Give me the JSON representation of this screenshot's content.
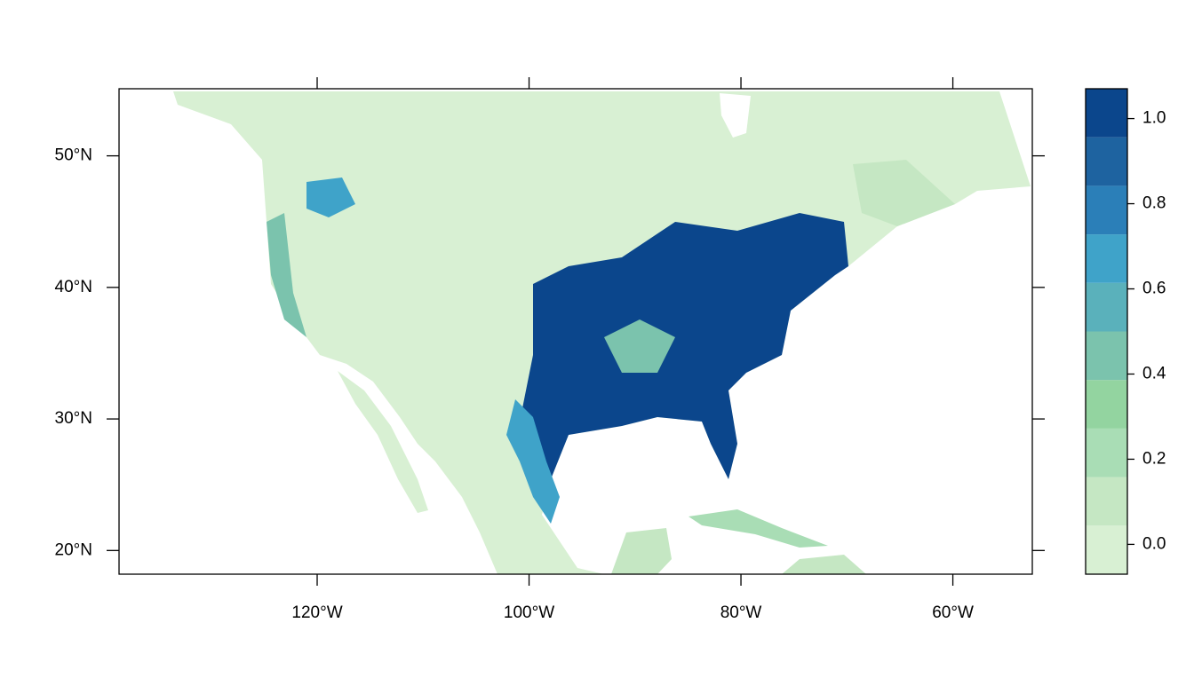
{
  "chart_data": {
    "type": "raster-map",
    "xlim": [
      -138.7,
      -52.5
    ],
    "ylim": [
      18.2,
      55.1
    ],
    "xticks": [
      {
        "value": -120,
        "label": "120°W"
      },
      {
        "value": -100,
        "label": "100°W"
      },
      {
        "value": -80,
        "label": "80°W"
      },
      {
        "value": -60,
        "label": "60°W"
      }
    ],
    "yticks": [
      {
        "value": 20,
        "label": "20°N"
      },
      {
        "value": 30,
        "label": "30°N"
      },
      {
        "value": 40,
        "label": "40°N"
      },
      {
        "value": 50,
        "label": "50°N"
      }
    ],
    "colorbar": {
      "breaks": [
        -0.07,
        0.044,
        0.158,
        0.272,
        0.386,
        0.5,
        0.614,
        0.728,
        0.842,
        0.956,
        1.07
      ],
      "colors": [
        "#d8f0d3",
        "#c5e7c3",
        "#a9ddb5",
        "#93d4a0",
        "#7bc3ad",
        "#5ab1bb",
        "#3fa3c9",
        "#2b7fb8",
        "#1e63a0",
        "#0b468c"
      ],
      "ticks": [
        {
          "value": 0,
          "label": "0.0"
        },
        {
          "value": 0.2,
          "label": "0.2"
        },
        {
          "value": 0.4,
          "label": "0.4"
        },
        {
          "value": 0.6,
          "label": "0.6"
        },
        {
          "value": 0.8,
          "label": "0.8"
        },
        {
          "value": 1,
          "label": "1.0"
        }
      ]
    }
  }
}
